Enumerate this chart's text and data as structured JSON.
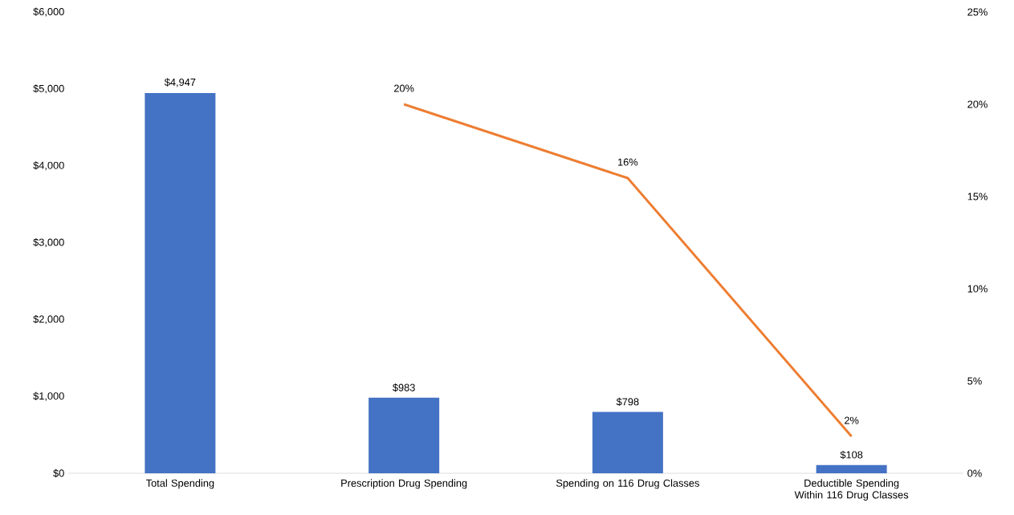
{
  "chart_data": {
    "type": "bar",
    "categories": [
      "Total Spending",
      "Prescription Drug Spending",
      "Spending on 116 Drug Classes",
      "Deductible Spending Within 116 Drug Classes"
    ],
    "series": [
      {
        "color": "#4472c4",
        "values": [
          4947,
          983,
          798,
          108
        ],
        "value_labels": [
          "$4,947",
          "$983",
          "$798",
          "$108"
        ]
      },
      {
        "type": "line",
        "axis": "y2",
        "color": "#ed7d31",
        "values": [
          null,
          20,
          16,
          2
        ],
        "value_labels": [
          null,
          "20%",
          "16%",
          "2%"
        ]
      }
    ],
    "ylim": [
      0,
      6000
    ],
    "yticks": [
      {
        "value": 0,
        "label": "$0"
      },
      {
        "value": 1000,
        "label": "$1,000"
      },
      {
        "value": 2000,
        "label": "$2,000"
      },
      {
        "value": 3000,
        "label": "$3,000"
      },
      {
        "value": 4000,
        "label": "$4,000"
      },
      {
        "value": 5000,
        "label": "$5,000"
      },
      {
        "value": 6000,
        "label": "$6,000"
      }
    ],
    "y2lim": [
      0,
      25
    ],
    "y2ticks": [
      {
        "value": 0,
        "label": "0%"
      },
      {
        "value": 5,
        "label": "5%"
      },
      {
        "value": 10,
        "label": "10%"
      },
      {
        "value": 15,
        "label": "15%"
      },
      {
        "value": 20,
        "label": "20%"
      },
      {
        "value": 25,
        "label": "25%"
      }
    ],
    "marker": "none",
    "line_style": "solid"
  }
}
